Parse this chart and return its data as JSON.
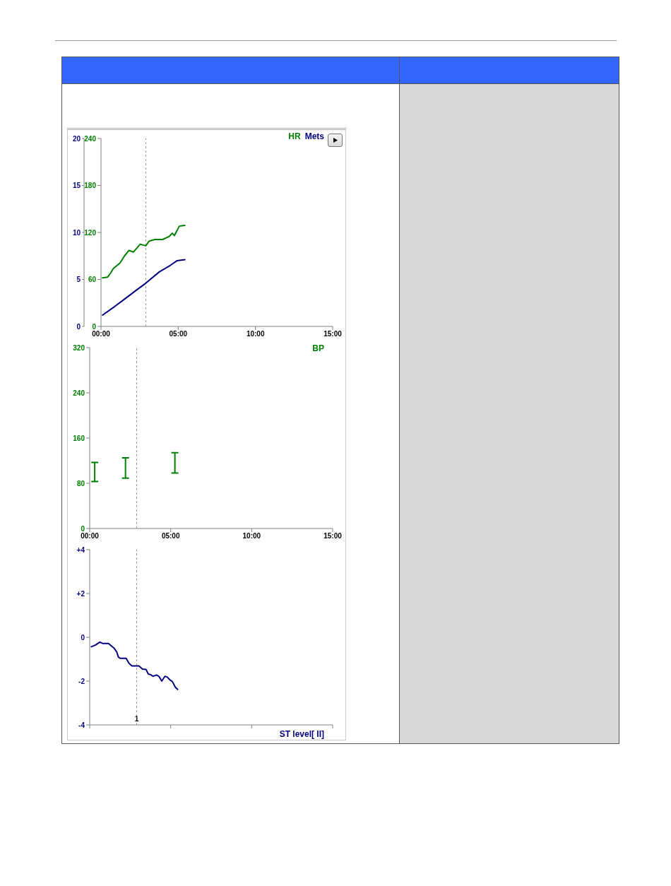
{
  "chart_data": [
    {
      "type": "line",
      "series": [
        {
          "name": "HR",
          "color": "#008000",
          "x": [
            0.1,
            0.43,
            0.65,
            0.8,
            1.23,
            1.52,
            1.81,
            2.1,
            2.54,
            2.9,
            3.12,
            3.48,
            3.99,
            4.42,
            4.61,
            4.75,
            5.07,
            5.43
          ],
          "values": [
            62,
            63,
            69,
            74,
            81,
            90,
            97,
            95,
            105,
            103,
            109,
            111,
            111,
            115,
            119,
            116,
            128,
            129
          ]
        },
        {
          "name": "Mets",
          "color": "#000080",
          "axis": "y2",
          "x": [
            0.1,
            0.87,
            1.6,
            2.32,
            2.9,
            3.77,
            4.49,
            4.93,
            5.43
          ],
          "values": [
            1.2,
            2.1,
            3.0,
            3.9,
            4.6,
            5.8,
            6.5,
            7.0,
            7.1
          ]
        }
      ],
      "xlim": [
        0,
        15
      ],
      "xticks": [
        {
          "value": 0,
          "label": "00:00"
        },
        {
          "value": 5,
          "label": "05:00"
        },
        {
          "value": 10,
          "label": "10:00"
        },
        {
          "value": 15,
          "label": "15:00"
        }
      ],
      "ylim": [
        0,
        240
      ],
      "yticks": [
        0,
        60,
        120,
        180,
        240
      ],
      "y2lim": [
        0,
        20
      ],
      "y2ticks": [
        0,
        5,
        10,
        15,
        20
      ],
      "ref_lines": [
        {
          "axis": "x",
          "value": 2.9,
          "label": null,
          "color": "#999999",
          "line_style": "dashed"
        }
      ]
    },
    {
      "type": "bar",
      "x": [
        0.3,
        2.2,
        5.25
      ],
      "series": [
        {
          "name": "BP",
          "color": "#008000",
          "base": [
            83,
            89,
            98
          ],
          "values": [
            34,
            36,
            36
          ]
        }
      ],
      "xlim": [
        0,
        15
      ],
      "xticks": [
        {
          "value": 0,
          "label": "00:00"
        },
        {
          "value": 5,
          "label": "05:00"
        },
        {
          "value": 10,
          "label": "10:00"
        },
        {
          "value": 15,
          "label": "15:00"
        }
      ],
      "ylim": [
        0,
        320
      ],
      "yticks": [
        0,
        80,
        160,
        240,
        320
      ],
      "ref_lines": [
        {
          "axis": "x",
          "value": 2.9,
          "label": null,
          "color": "#999999",
          "line_style": "dashed"
        }
      ]
    },
    {
      "type": "line",
      "tick_labels": "y",
      "series": [
        {
          "name": "ST level[ II]",
          "color": "#000080",
          "x": [
            0.1,
            0.36,
            0.62,
            0.8,
            1.16,
            1.52,
            1.67,
            1.77,
            1.88,
            2.25,
            2.43,
            2.61,
            3.04,
            3.26,
            3.48,
            3.62,
            3.77,
            3.91,
            4.13,
            4.28,
            4.45,
            4.64,
            4.78,
            4.96,
            5.1,
            5.29,
            5.43
          ],
          "values": [
            -0.43,
            -0.35,
            -0.22,
            -0.28,
            -0.28,
            -0.51,
            -0.67,
            -0.9,
            -0.96,
            -0.96,
            -1.19,
            -1.31,
            -1.31,
            -1.45,
            -1.47,
            -1.68,
            -1.71,
            -1.78,
            -1.72,
            -1.79,
            -2.0,
            -1.78,
            -1.81,
            -1.95,
            -2.02,
            -2.28,
            -2.38
          ]
        }
      ],
      "xlim": [
        0,
        15
      ],
      "xticks": [
        0,
        5,
        10,
        15
      ],
      "ylim": [
        -4,
        4
      ],
      "yticks": [
        {
          "value": 4,
          "label": "+4"
        },
        {
          "value": 2,
          "label": "+2"
        },
        {
          "value": 0,
          "label": "0"
        },
        {
          "value": -2,
          "label": "-2"
        },
        {
          "value": -4,
          "label": "-4"
        }
      ],
      "ref_lines": [
        {
          "axis": "x",
          "value": 2.9,
          "label": null,
          "color": "#999999",
          "line_style": "dashed"
        }
      ],
      "annotations": [
        {
          "text": "1",
          "x": 2.9,
          "y": -4
        }
      ]
    }
  ]
}
